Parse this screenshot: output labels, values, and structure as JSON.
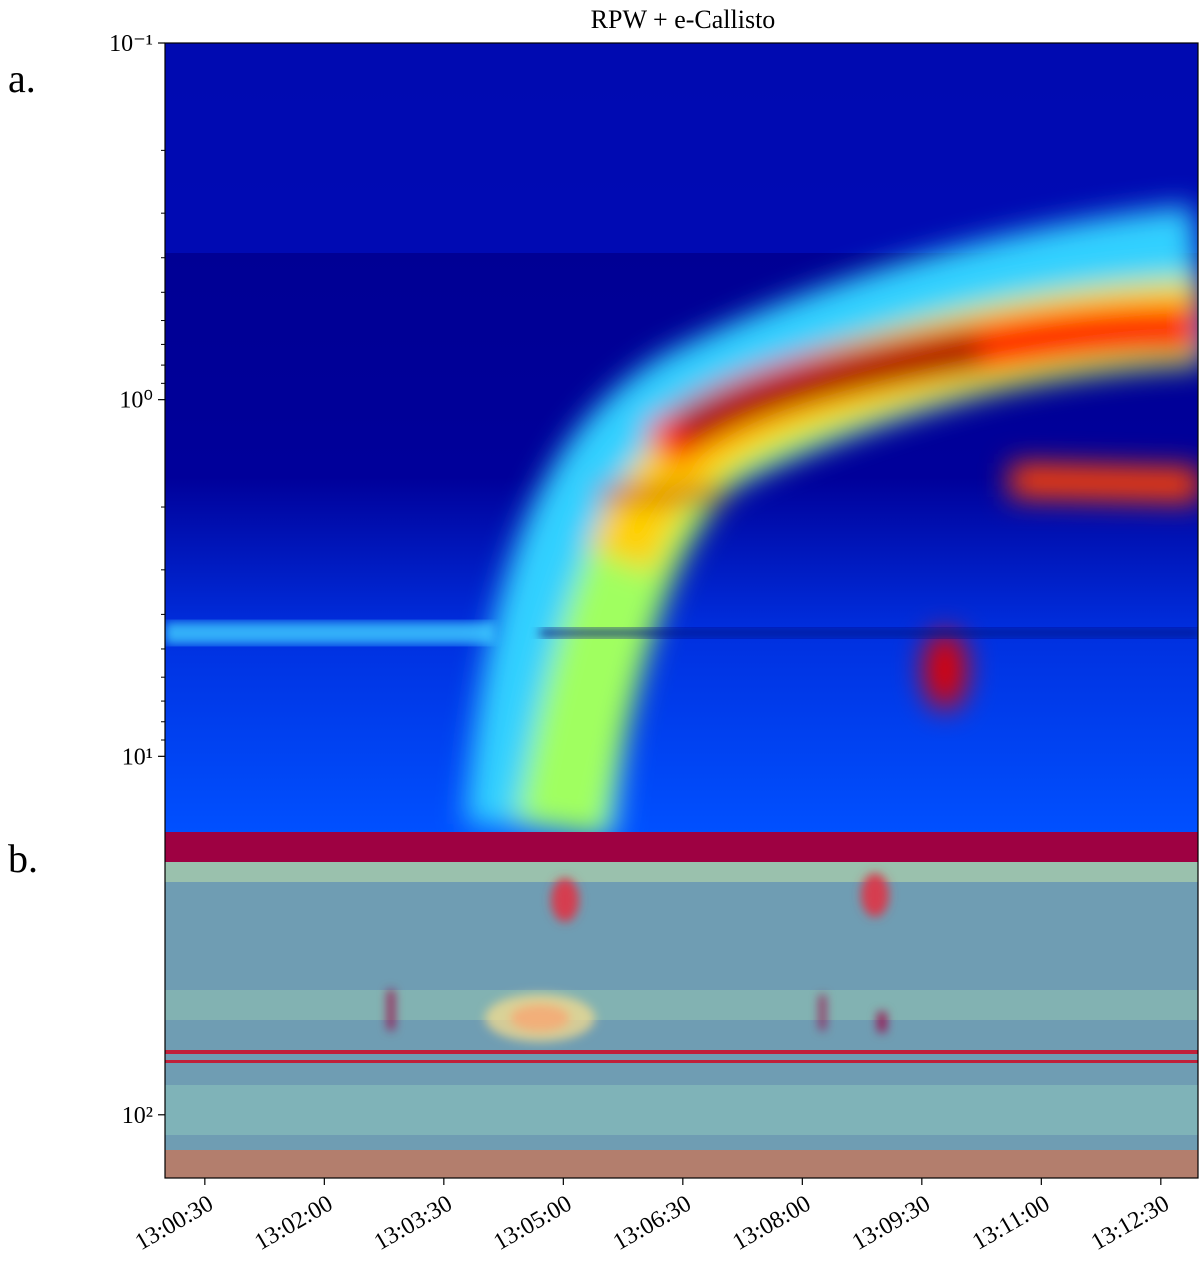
{
  "chart_data": [
    {
      "type": "heatmap",
      "title": "RPW + e-Callisto",
      "panel_label": "a.",
      "ylim": [
        0.1,
        16.3
      ],
      "yaxis_inverted": true,
      "log_y": true,
      "yticks": [
        {
          "value": 0.1,
          "label": "10⁻¹"
        },
        {
          "value": 1,
          "label": "10⁰"
        },
        {
          "value": 10,
          "label": "10¹"
        }
      ],
      "colormap": "jet"
    },
    {
      "type": "heatmap",
      "panel_label": "b.",
      "ylim": [
        16.3,
        150
      ],
      "yaxis_inverted": true,
      "log_y": true,
      "yticks": [
        {
          "value": 100,
          "label": "10²"
        }
      ],
      "xlim": [
        "13:00:00",
        "13:12:58"
      ],
      "xticks": [
        "13:00:30",
        "13:02:00",
        "13:03:30",
        "13:05:00",
        "13:06:30",
        "13:08:00",
        "13:09:30",
        "13:11:00",
        "13:12:30"
      ],
      "colormap": "spectral"
    }
  ]
}
